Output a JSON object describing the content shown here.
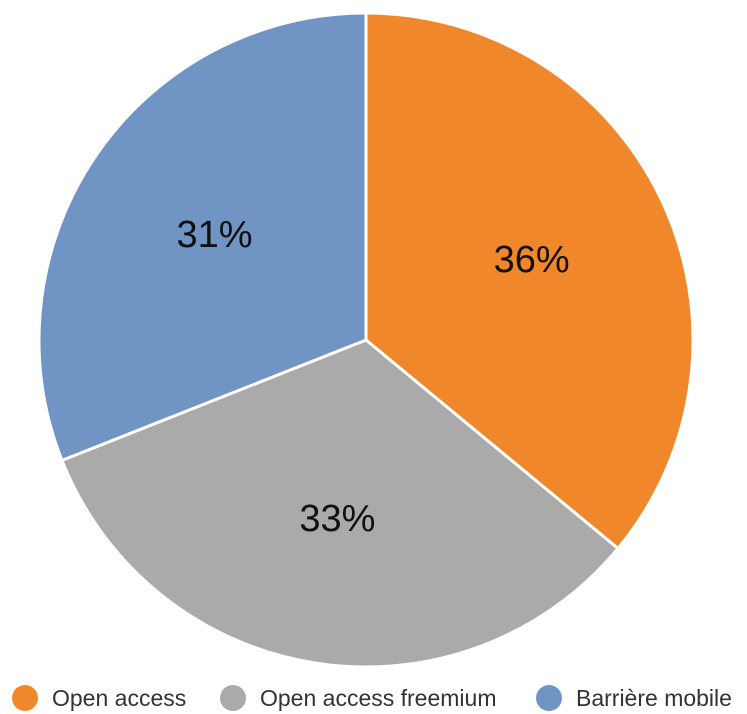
{
  "chart_data": {
    "type": "pie",
    "categories": [
      "Open access",
      "Open access freemium",
      "Barrière mobile"
    ],
    "values": [
      36,
      33,
      31
    ],
    "value_labels": [
      "36%",
      "33%",
      "31%"
    ],
    "colors": [
      "#f0882b",
      "#aaaaaa",
      "#7095c5"
    ],
    "start_angle": "top",
    "direction": "clockwise",
    "legend_position": "bottom"
  }
}
